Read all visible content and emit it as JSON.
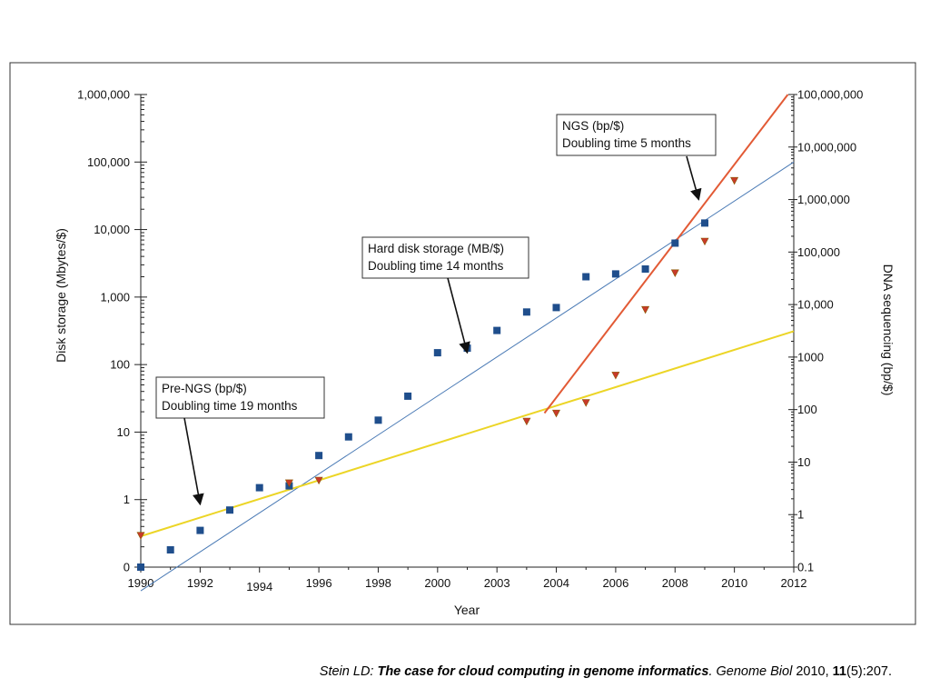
{
  "chart_data": {
    "type": "scatter",
    "xlabel": "Year",
    "ylabel_left": "Disk storage (Mbytes/$)",
    "ylabel_right": "DNA sequencing (bp/$)",
    "xlim": [
      1990,
      2012
    ],
    "x_ticks": [
      "1990",
      "1992",
      "1994",
      "1996",
      "1998",
      "2000",
      "2003",
      "2004",
      "2006",
      "2008",
      "2010",
      "2012"
    ],
    "y_left_scale": "log",
    "y_left_ticks": [
      "0",
      "1",
      "10",
      "100",
      "1,000",
      "10,000",
      "100,000",
      "1,000,000"
    ],
    "y_right_scale": "log",
    "y_right_ticks": [
      "0.1",
      "1",
      "10",
      "100",
      "1000",
      "10,000",
      "100,000",
      "1,000,000",
      "10,000,000",
      "100,000,000"
    ],
    "grid": false,
    "series": [
      {
        "axis": "left",
        "color": "#1f4e8c",
        "marker": "square",
        "points": [
          [
            1990,
            0.1
          ],
          [
            1991,
            0.18
          ],
          [
            1992,
            0.35
          ],
          [
            1993,
            0.7
          ],
          [
            1994,
            1.5
          ],
          [
            1995,
            1.6
          ],
          [
            1996,
            4.5
          ],
          [
            1997,
            8.5
          ],
          [
            1998,
            15
          ],
          [
            1999,
            34
          ],
          [
            2000,
            150
          ],
          [
            2001,
            175
          ],
          [
            2002,
            320
          ],
          [
            2003,
            600
          ],
          [
            2004,
            700
          ],
          [
            2005,
            2000
          ],
          [
            2006,
            2200
          ],
          [
            2007,
            2600
          ],
          [
            2008,
            6300
          ],
          [
            2009,
            12500
          ]
        ]
      },
      {
        "axis": "right",
        "color": "#c8392b",
        "marker": "triangle-down",
        "points": [
          [
            1990,
            0.4
          ],
          [
            1995,
            4
          ],
          [
            1996,
            4.5
          ],
          [
            2003,
            60
          ],
          [
            2004,
            85
          ],
          [
            2005,
            135
          ],
          [
            2006,
            450
          ],
          [
            2007,
            8000
          ],
          [
            2008,
            40000
          ],
          [
            2009,
            160000
          ],
          [
            2010,
            2300000
          ]
        ]
      }
    ],
    "trendlines": [
      {
        "axis": "left",
        "color": "#4a7ab5",
        "x": [
          1990,
          2012
        ],
        "y": [
          0.0445,
          100000
        ]
      },
      {
        "axis": "right",
        "color": "#ecd526",
        "x": [
          1990,
          2012
        ],
        "y": [
          0.387,
          3115
        ]
      },
      {
        "axis": "right",
        "color": "#e25a35",
        "x": [
          2003.6,
          2011.8
        ],
        "y": [
          86,
          100000000
        ]
      }
    ],
    "annotations": [
      {
        "lines": [
          "NGS (bp/$)",
          "Doubling time 5 months"
        ],
        "arrow_to": [
          2008.8,
          1000000
        ]
      },
      {
        "lines": [
          "Hard disk storage (MB/$)",
          "Doubling time 14 months"
        ],
        "arrow_to": [
          2001,
          150
        ]
      },
      {
        "lines": [
          "Pre-NGS (bp/$)",
          "Doubling time 19 months"
        ],
        "arrow_to": [
          1992,
          0.85
        ]
      }
    ]
  },
  "citation": {
    "authors": "Stein LD: ",
    "title": "The case for cloud computing in genome informatics",
    "journal": ". Genome Biol",
    "year": " 2010, ",
    "volume": "11",
    "pages": "(5):207."
  }
}
